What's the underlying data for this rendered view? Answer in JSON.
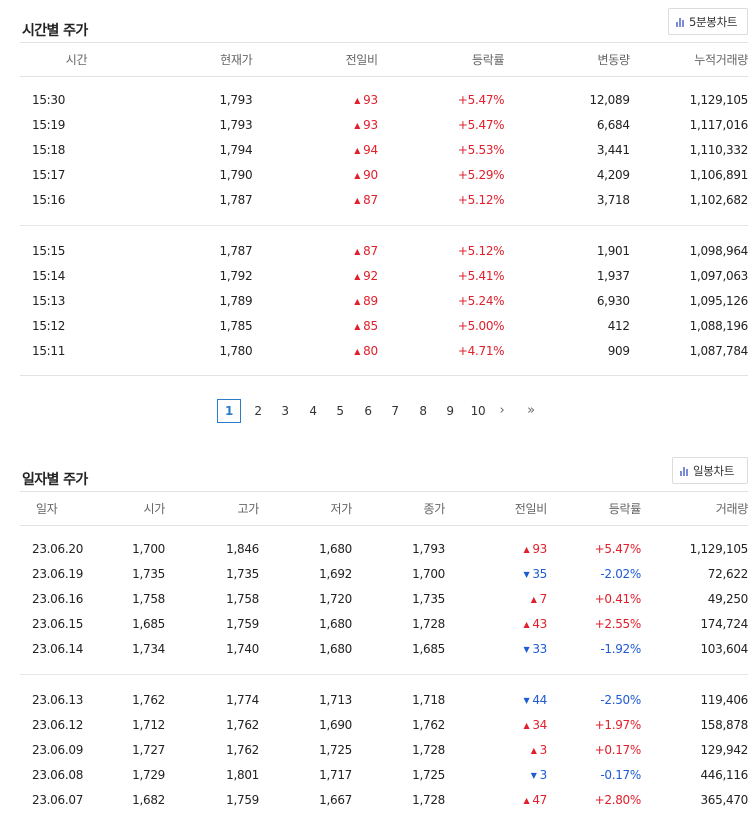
{
  "intraday": {
    "title": "시간별 주가",
    "chart_button": "5분봉차트",
    "columns": [
      "시간",
      "현재가",
      "전일비",
      "등락률",
      "변동량",
      "누적거래량"
    ],
    "rows": [
      {
        "time": "15:30",
        "price": "1,793",
        "dir": "up",
        "change": "93",
        "rate": "+5.47%",
        "volume": "12,089",
        "cum": "1,129,105"
      },
      {
        "time": "15:19",
        "price": "1,793",
        "dir": "up",
        "change": "93",
        "rate": "+5.47%",
        "volume": "6,684",
        "cum": "1,117,016"
      },
      {
        "time": "15:18",
        "price": "1,794",
        "dir": "up",
        "change": "94",
        "rate": "+5.53%",
        "volume": "3,441",
        "cum": "1,110,332"
      },
      {
        "time": "15:17",
        "price": "1,790",
        "dir": "up",
        "change": "90",
        "rate": "+5.29%",
        "volume": "4,209",
        "cum": "1,106,891"
      },
      {
        "time": "15:16",
        "price": "1,787",
        "dir": "up",
        "change": "87",
        "rate": "+5.12%",
        "volume": "3,718",
        "cum": "1,102,682"
      },
      {
        "time": "15:15",
        "price": "1,787",
        "dir": "up",
        "change": "87",
        "rate": "+5.12%",
        "volume": "1,901",
        "cum": "1,098,964"
      },
      {
        "time": "15:14",
        "price": "1,792",
        "dir": "up",
        "change": "92",
        "rate": "+5.41%",
        "volume": "1,937",
        "cum": "1,097,063"
      },
      {
        "time": "15:13",
        "price": "1,789",
        "dir": "up",
        "change": "89",
        "rate": "+5.24%",
        "volume": "6,930",
        "cum": "1,095,126"
      },
      {
        "time": "15:12",
        "price": "1,785",
        "dir": "up",
        "change": "85",
        "rate": "+5.00%",
        "volume": "412",
        "cum": "1,088,196"
      },
      {
        "time": "15:11",
        "price": "1,780",
        "dir": "up",
        "change": "80",
        "rate": "+4.71%",
        "volume": "909",
        "cum": "1,087,784"
      }
    ]
  },
  "pagination": {
    "current": "1",
    "pages": [
      "1",
      "2",
      "3",
      "4",
      "5",
      "6",
      "7",
      "8",
      "9",
      "10"
    ],
    "next": "›",
    "last": "»"
  },
  "daily": {
    "title": "일자별 주가",
    "chart_button": "일봉차트",
    "columns": [
      "일자",
      "시가",
      "고가",
      "저가",
      "종가",
      "전일비",
      "등락률",
      "거래량"
    ],
    "rows": [
      {
        "date": "23.06.20",
        "open": "1,700",
        "high": "1,846",
        "low": "1,680",
        "close": "1,793",
        "dir": "up",
        "change": "93",
        "rate": "+5.47%",
        "volume": "1,129,105"
      },
      {
        "date": "23.06.19",
        "open": "1,735",
        "high": "1,735",
        "low": "1,692",
        "close": "1,700",
        "dir": "down",
        "change": "35",
        "rate": "-2.02%",
        "volume": "72,622"
      },
      {
        "date": "23.06.16",
        "open": "1,758",
        "high": "1,758",
        "low": "1,720",
        "close": "1,735",
        "dir": "up",
        "change": "7",
        "rate": "+0.41%",
        "volume": "49,250"
      },
      {
        "date": "23.06.15",
        "open": "1,685",
        "high": "1,759",
        "low": "1,680",
        "close": "1,728",
        "dir": "up",
        "change": "43",
        "rate": "+2.55%",
        "volume": "174,724"
      },
      {
        "date": "23.06.14",
        "open": "1,734",
        "high": "1,740",
        "low": "1,680",
        "close": "1,685",
        "dir": "down",
        "change": "33",
        "rate": "-1.92%",
        "volume": "103,604"
      },
      {
        "date": "23.06.13",
        "open": "1,762",
        "high": "1,774",
        "low": "1,713",
        "close": "1,718",
        "dir": "down",
        "change": "44",
        "rate": "-2.50%",
        "volume": "119,406"
      },
      {
        "date": "23.06.12",
        "open": "1,712",
        "high": "1,762",
        "low": "1,690",
        "close": "1,762",
        "dir": "up",
        "change": "34",
        "rate": "+1.97%",
        "volume": "158,878"
      },
      {
        "date": "23.06.09",
        "open": "1,727",
        "high": "1,762",
        "low": "1,725",
        "close": "1,728",
        "dir": "up",
        "change": "3",
        "rate": "+0.17%",
        "volume": "129,942"
      },
      {
        "date": "23.06.08",
        "open": "1,729",
        "high": "1,801",
        "low": "1,717",
        "close": "1,725",
        "dir": "down",
        "change": "3",
        "rate": "-0.17%",
        "volume": "446,116"
      },
      {
        "date": "23.06.07",
        "open": "1,682",
        "high": "1,759",
        "low": "1,667",
        "close": "1,728",
        "dir": "up",
        "change": "47",
        "rate": "+2.80%",
        "volume": "365,470"
      }
    ]
  },
  "colors": {
    "up": "#e0202d",
    "down": "#1f5bd3",
    "active_page": "#2a7dc9"
  },
  "icons": {
    "chart_button": "bar-chart-icon",
    "up": "triangle-up-icon",
    "down": "triangle-down-icon"
  }
}
